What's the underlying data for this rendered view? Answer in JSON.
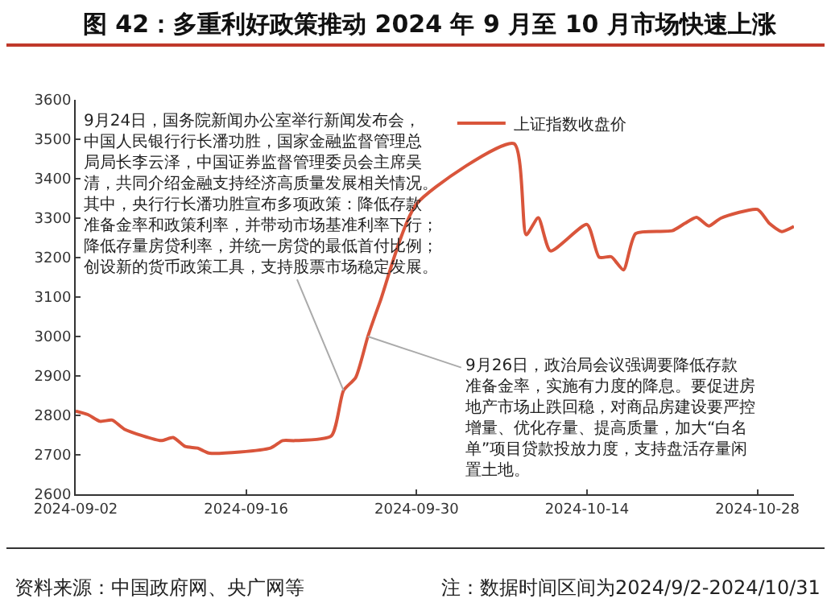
{
  "chart_data": {
    "type": "line",
    "title": "图 42：多重利好政策推动 2024 年 9 月至 10 月市场快速上涨",
    "x": [
      "2024-09-02",
      "2024-09-03",
      "2024-09-04",
      "2024-09-05",
      "2024-09-06",
      "2024-09-09",
      "2024-09-10",
      "2024-09-11",
      "2024-09-12",
      "2024-09-13",
      "2024-09-18",
      "2024-09-19",
      "2024-09-20",
      "2024-09-23",
      "2024-09-24",
      "2024-09-25",
      "2024-09-26",
      "2024-09-27",
      "2024-09-30",
      "2024-10-08",
      "2024-10-09",
      "2024-10-10",
      "2024-10-11",
      "2024-10-14",
      "2024-10-15",
      "2024-10-16",
      "2024-10-17",
      "2024-10-18",
      "2024-10-21",
      "2024-10-22",
      "2024-10-23",
      "2024-10-24",
      "2024-10-25",
      "2024-10-28",
      "2024-10-29",
      "2024-10-30",
      "2024-10-31"
    ],
    "series": [
      {
        "name": "上证指数收盘价",
        "color": "#d9553b",
        "values": [
          2811,
          2802,
          2785,
          2788,
          2765,
          2736,
          2744,
          2721,
          2717,
          2704,
          2717,
          2736,
          2736,
          2748,
          2863,
          2896,
          3000,
          3088,
          3336,
          3489,
          3258,
          3301,
          3217,
          3284,
          3201,
          3202,
          3169,
          3261,
          3268,
          3286,
          3302,
          3280,
          3300,
          3322,
          3286,
          3266,
          3279
        ]
      }
    ],
    "xlim": [
      "2024-09-02",
      "2024-10-31"
    ],
    "xticks": [
      "2024-09-02",
      "2024-09-16",
      "2024-09-30",
      "2024-10-14",
      "2024-10-28"
    ],
    "ylim": [
      2600,
      3600
    ],
    "yticks": [
      2600,
      2700,
      2800,
      2900,
      3000,
      3100,
      3200,
      3300,
      3400,
      3500,
      3600
    ],
    "grid": false,
    "legend": "top right",
    "marker": "none",
    "line_style": "solid",
    "annotations": [
      {
        "text": "9月24日，国务院新闻办公室举行新闻发布会，中国人民银行行长潘功胜，国家金融监督管理总局局长李云泽，中国证券监督管理委员会主席吴清，共同介绍金融支持经济高质量发展相关情况。其中，央行行长潘功胜宣布多项政策：降低存款准备金率和政策利率，并带动市场基准利率下行；降低存量房贷利率，并统一房贷的最低首付比例；创设新的货币政策工具，支持股票市场稳定发展。",
        "x": "2024-09-24",
        "y": 2863
      },
      {
        "text": "9月26日，政治局会议强调要降低存款准备金率，实施有力度的降息。要促进房地产市场止跌回稳，对商品房建设要严控增量、优化存量、提高质量，加大“白名单”项目贷款投放力度，支持盘活存量闲置土地。",
        "x": "2024-09-26",
        "y": 3000
      },
      "资料来源：中国政府网、央广网等",
      "注：数据时间区间为2024/9/2-2024/10/31"
    ]
  }
}
